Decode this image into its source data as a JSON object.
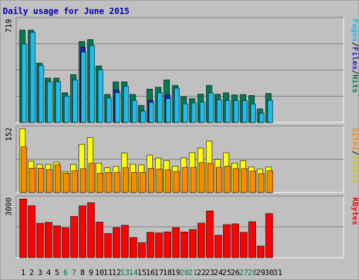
{
  "chart_data": {
    "type": "bar",
    "title": "Daily usage for June 2015",
    "categories": [
      "1",
      "2",
      "3",
      "4",
      "5",
      "6",
      "7",
      "8",
      "9",
      "10",
      "11",
      "12",
      "13",
      "14",
      "15",
      "16",
      "17",
      "18",
      "19",
      "20",
      "21",
      "22",
      "23",
      "24",
      "25",
      "26",
      "27",
      "28",
      "29",
      "30",
      "31"
    ],
    "weekend_categories": [
      "6",
      "7",
      "13",
      "14",
      "20",
      "21",
      "27",
      "28"
    ],
    "panels": [
      {
        "id": "top",
        "max_label": "719",
        "ylim": [
          0,
          719
        ],
        "legend": [
          "Pages",
          "/",
          "Files",
          "/",
          "Hits"
        ],
        "series": [
          {
            "name": "Hits",
            "color": "#007a52",
            "values": [
              650,
              650,
              418,
              312,
              312,
              209,
              337,
              570,
              583,
              398,
              198,
              286,
              286,
              198,
              120,
              235,
              248,
              300,
              261,
              181,
              168,
              199,
              261,
              199,
              209,
              194,
              197,
              190,
              96,
              204,
              0
            ]
          },
          {
            "name": "Files",
            "color": "#2222cc",
            "values": [
              0,
              0,
              0,
              0,
              0,
              0,
              0,
              530,
              0,
              0,
              0,
              229,
              0,
              0,
              0,
              157,
              0,
              194,
              0,
              0,
              0,
              0,
              0,
              0,
              0,
              0,
              0,
              0,
              0,
              0,
              0
            ]
          },
          {
            "name": "Pages",
            "color": "#22bbee",
            "values": [
              552,
              635,
              402,
              286,
              286,
              186,
              300,
              495,
              542,
              370,
              173,
              211,
              255,
              154,
              80,
              141,
              209,
              168,
              242,
              131,
              138,
              143,
              208,
              161,
              154,
              154,
              154,
              129,
              65,
              157,
              0
            ]
          }
        ]
      },
      {
        "id": "mid",
        "max_label": "152",
        "ylim": [
          0,
          152
        ],
        "legend": [
          "Sites",
          "/",
          "Visits"
        ],
        "series": [
          {
            "name": "Visits",
            "color": "#ffff00",
            "values": [
              152,
              75,
              67,
              67,
              72,
              50,
              67,
              115,
              131,
              70,
              59,
              62,
              94,
              68,
              66,
              89,
              82,
              76,
              63,
              83,
              95,
              106,
              123,
              79,
              95,
              70,
              76,
              61,
              56,
              61,
              0
            ]
          },
          {
            "name": "Sites",
            "color": "#ff8800",
            "values": [
              109,
              58,
              58,
              55,
              66,
              46,
              52,
              57,
              70,
              46,
              48,
              48,
              59,
              48,
              48,
              58,
              56,
              54,
              50,
              60,
              60,
              71,
              70,
              60,
              63,
              57,
              57,
              51,
              45,
              52,
              0
            ]
          }
        ]
      },
      {
        "id": "bot",
        "max_label": "3000",
        "ylim": [
          0,
          3000
        ],
        "legend": [
          "KBytes"
        ],
        "series": [
          {
            "name": "KBytes",
            "color": "#ff0000",
            "values": [
              2990,
              2650,
              1750,
              1800,
              1620,
              1520,
              2100,
              2640,
              2800,
              1810,
              1230,
              1530,
              1650,
              1030,
              760,
              1290,
              1260,
              1310,
              1530,
              1310,
              1430,
              1760,
              2380,
              1140,
              1680,
              1720,
              1290,
              1830,
              590,
              2250,
              0
            ]
          }
        ]
      }
    ]
  }
}
